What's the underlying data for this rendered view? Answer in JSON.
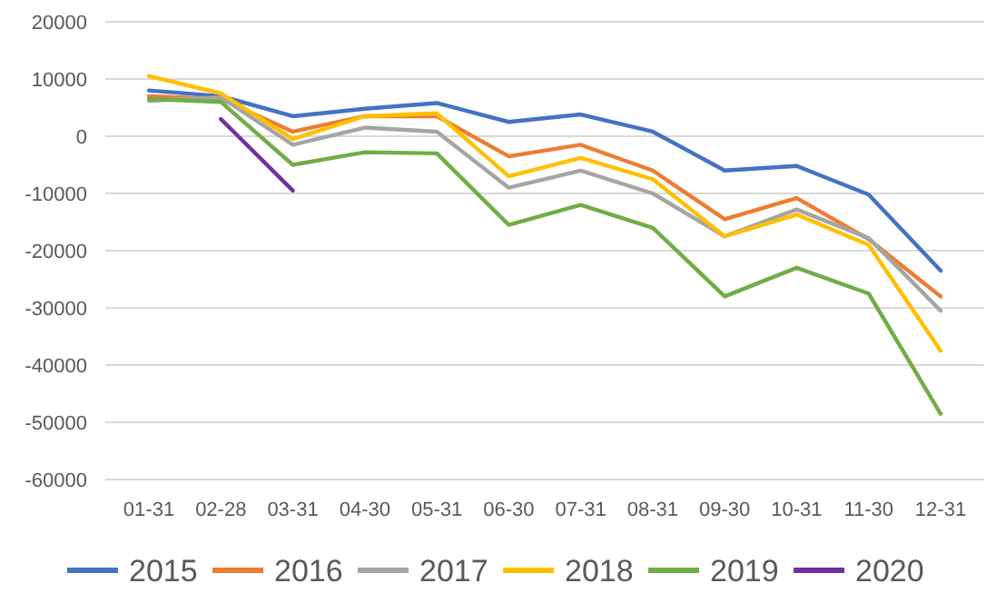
{
  "chart_data": {
    "type": "line",
    "categories": [
      "01-31",
      "02-28",
      "03-31",
      "04-30",
      "05-31",
      "06-30",
      "07-31",
      "08-31",
      "09-30",
      "10-31",
      "11-30",
      "12-31"
    ],
    "series": [
      {
        "name": "2015",
        "color": "#4472c4",
        "values": [
          8000,
          7000,
          3500,
          4800,
          5800,
          2500,
          3800,
          800,
          -6000,
          -5200,
          -10200,
          -23500
        ]
      },
      {
        "name": "2016",
        "color": "#ed7d31",
        "values": [
          7000,
          6500,
          800,
          3500,
          3500,
          -3500,
          -1500,
          -6000,
          -14500,
          -10800,
          -18000,
          -28000
        ]
      },
      {
        "name": "2017",
        "color": "#a5a5a5",
        "values": [
          6200,
          6800,
          -1500,
          1500,
          800,
          -9000,
          -6000,
          -10000,
          -17500,
          -12800,
          -17800,
          -30500
        ]
      },
      {
        "name": "2018",
        "color": "#ffc000",
        "values": [
          10500,
          7500,
          -500,
          3500,
          4000,
          -7000,
          -3800,
          -7500,
          -17500,
          -13700,
          -19000,
          -37500
        ]
      },
      {
        "name": "2019",
        "color": "#70ad47",
        "values": [
          6500,
          6000,
          -5000,
          -2800,
          -3000,
          -15500,
          -12000,
          -16000,
          -28000,
          -23000,
          -27500,
          -48500
        ]
      },
      {
        "name": "2020",
        "color": "#7030a0",
        "values": [
          null,
          3000,
          -9500,
          null,
          null,
          null,
          null,
          null,
          null,
          null,
          null,
          null
        ]
      }
    ],
    "ylim": [
      -60000,
      20000
    ],
    "yticks": [
      -60000,
      -50000,
      -40000,
      -30000,
      -20000,
      -10000,
      0,
      10000,
      20000
    ],
    "grid": "y",
    "legend": "bottom",
    "marker": "none",
    "line_style": "solid"
  }
}
